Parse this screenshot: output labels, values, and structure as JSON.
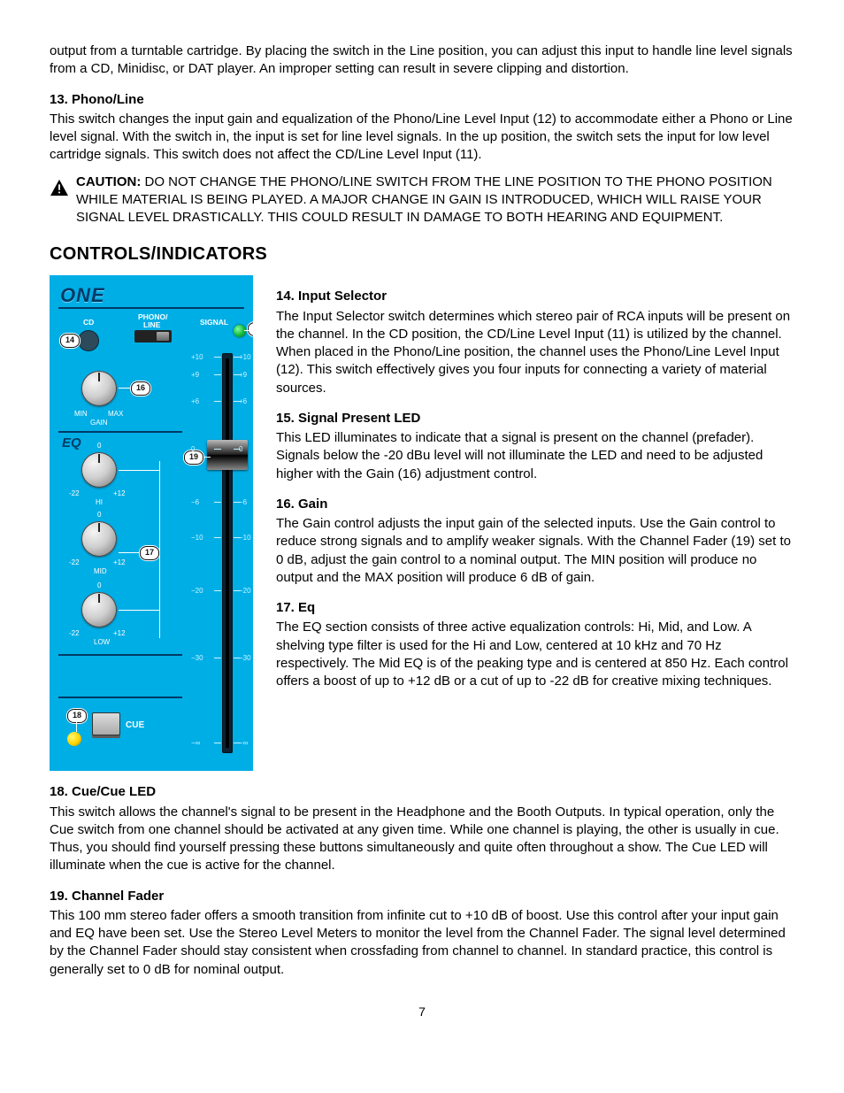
{
  "intro_text": "output from a turntable cartridge. By placing the switch in the Line position, you can adjust this input to handle line level signals from a CD, Minidisc, or DAT player. An improper setting can result in severe clipping and distortion.",
  "item13": {
    "heading": "13.  Phono/Line",
    "body": "This switch changes the input gain and equalization of the Phono/Line Level Input (12) to accommodate either a Phono or Line level signal. With the switch in, the input is set for line level signals. In the up position, the switch sets the input for low level cartridge signals. This switch does not affect the CD/Line Level Input (11)."
  },
  "caution": {
    "label": "CAUTION:",
    "text": " DO NOT CHANGE THE PHONO/LINE SWITCH FROM THE LINE POSITION TO THE PHONO POSITION WHILE MATERIAL IS BEING PLAYED. A MAJOR CHANGE IN GAIN IS INTRODUCED, WHICH WILL RAISE YOUR SIGNAL LEVEL DRASTICALLY. THIS COULD RESULT IN DAMAGE TO BOTH HEARING AND EQUIPMENT."
  },
  "controls_heading": "CONTROLS/INDICATORS",
  "item14": {
    "heading": "14.  Input Selector",
    "body": "The Input Selector switch determines which stereo pair of RCA inputs will be present on the channel. In the CD position, the CD/Line Level Input (11) is utilized by the channel. When placed in the Phono/Line position, the channel uses the Phono/Line Level Input (12). This switch effectively gives you four inputs for connecting a variety of material sources."
  },
  "item15": {
    "heading": "15.  Signal Present LED",
    "body": "This LED illuminates to indicate that a signal is present on the channel (prefader). Signals below the -20 dBu level will not illuminate the LED and need to be adjusted higher with the Gain (16) adjustment control."
  },
  "item16": {
    "heading": "16.  Gain",
    "body": "The Gain control adjusts the input gain of the selected inputs. Use the Gain control to reduce strong signals and to amplify weaker signals. With the Channel Fader (19) set to 0 dB, adjust the gain control to a nominal output. The MIN position will produce no output and the MAX position will produce 6 dB of gain."
  },
  "item17": {
    "heading": "17.  Eq",
    "body": "The EQ section consists of three active equalization controls: Hi, Mid, and Low. A shelving type filter is used for the Hi and Low, centered at 10 kHz and 70 Hz respectively. The Mid EQ is of the peaking type and is centered at 850 Hz. Each control offers a boost of up to +12 dB or a cut of up to -22 dB for creative mixing techniques."
  },
  "item18": {
    "heading": "18.  Cue/Cue LED",
    "body": "This switch allows the channel's signal to be present in the Headphone and the Booth Outputs. In typical operation, only the Cue switch from one channel should be activated at any given time. While one channel is playing, the other is usually in cue. Thus, you should find yourself pressing these buttons simultaneously and quite often throughout a show. The Cue LED will illuminate when the cue is active for the channel."
  },
  "item19": {
    "heading": "19.  Channel Fader",
    "body": "This 100 mm stereo fader offers a smooth transition from infinite cut to +10 dB of boost. Use this control after your input gain and EQ have been set. Use the Stereo Level Meters to monitor the level from the Channel Fader. The signal level determined by the Channel Fader should stay consistent when crossfading from channel to channel. In standard practice, this control is generally set to 0 dB for nominal output."
  },
  "panel": {
    "logo": "ONE",
    "labels": {
      "cd": "CD",
      "phono": "PHONO/",
      "line": "LINE",
      "signal": "SIGNAL",
      "min": "MIN",
      "max": "MAX",
      "gain": "GAIN",
      "eq": "EQ",
      "hi": "HI",
      "mid": "MID",
      "low": "LOW",
      "cue": "CUE",
      "eq_low": "-22",
      "eq_hi": "+12",
      "zero": "0"
    },
    "fader_scale_left": [
      "+10",
      "+9",
      "+6",
      "0",
      "−6",
      "−10",
      "−20",
      "−30",
      "−∞"
    ],
    "fader_scale_right": [
      "+10",
      "+9",
      "+6",
      "0",
      "−6",
      "−10",
      "−20",
      "−30",
      "−∞"
    ],
    "scale_y": [
      92,
      112,
      142,
      196,
      256,
      296,
      356,
      432,
      528
    ],
    "callouts": {
      "c14": "14",
      "c15": "15",
      "c16": "16",
      "c17": "17",
      "c18": "18",
      "c19": "19"
    },
    "colors": {
      "bg": "#00aee6",
      "dark": "#003a66",
      "led_green": "#11b73c",
      "led_yellow": "#ffd400"
    }
  },
  "page_number": "7"
}
